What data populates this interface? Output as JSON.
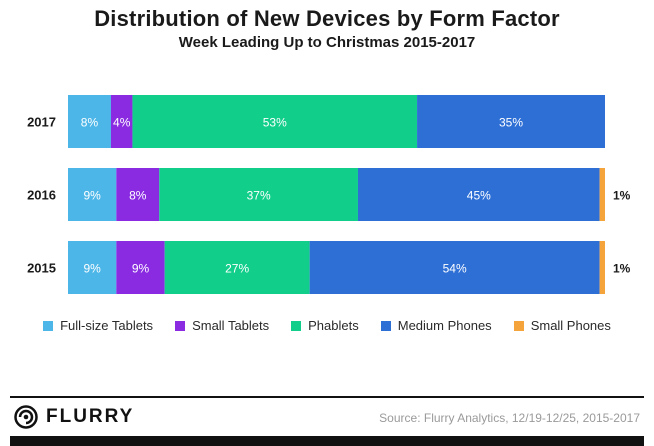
{
  "chart_data": {
    "type": "bar",
    "orientation": "horizontal",
    "stacked": true,
    "title": "Distribution of New Devices by Form Factor",
    "subtitle": "Week Leading Up to Christmas 2015-2017",
    "categories": [
      "2017",
      "2016",
      "2015"
    ],
    "series": [
      {
        "name": "Full-size Tablets",
        "color": "#4cb6e8",
        "values": [
          8,
          9,
          9
        ],
        "labels": [
          "8%",
          "9%",
          "9%"
        ]
      },
      {
        "name": "Small Tablets",
        "color": "#8a2be2",
        "values": [
          4,
          8,
          9
        ],
        "labels": [
          "4%",
          "8%",
          "9%"
        ]
      },
      {
        "name": "Phablets",
        "color": "#11cf8b",
        "values": [
          53,
          37,
          27
        ],
        "labels": [
          "53%",
          "37%",
          "27%"
        ]
      },
      {
        "name": "Medium Phones",
        "color": "#2e6fd6",
        "values": [
          35,
          45,
          54
        ],
        "labels": [
          "35%",
          "45%",
          "54%"
        ]
      },
      {
        "name": "Small Phones",
        "color": "#f5a33b",
        "values": [
          0,
          1,
          1
        ],
        "labels": [
          "",
          "1%",
          "1%"
        ]
      }
    ],
    "xlim": [
      0,
      100
    ],
    "grid": false,
    "legend": "bottom"
  },
  "footer": {
    "brand": "FLURRY",
    "source": "Source: Flurry Analytics, 12/19-12/25, 2015-2017"
  }
}
